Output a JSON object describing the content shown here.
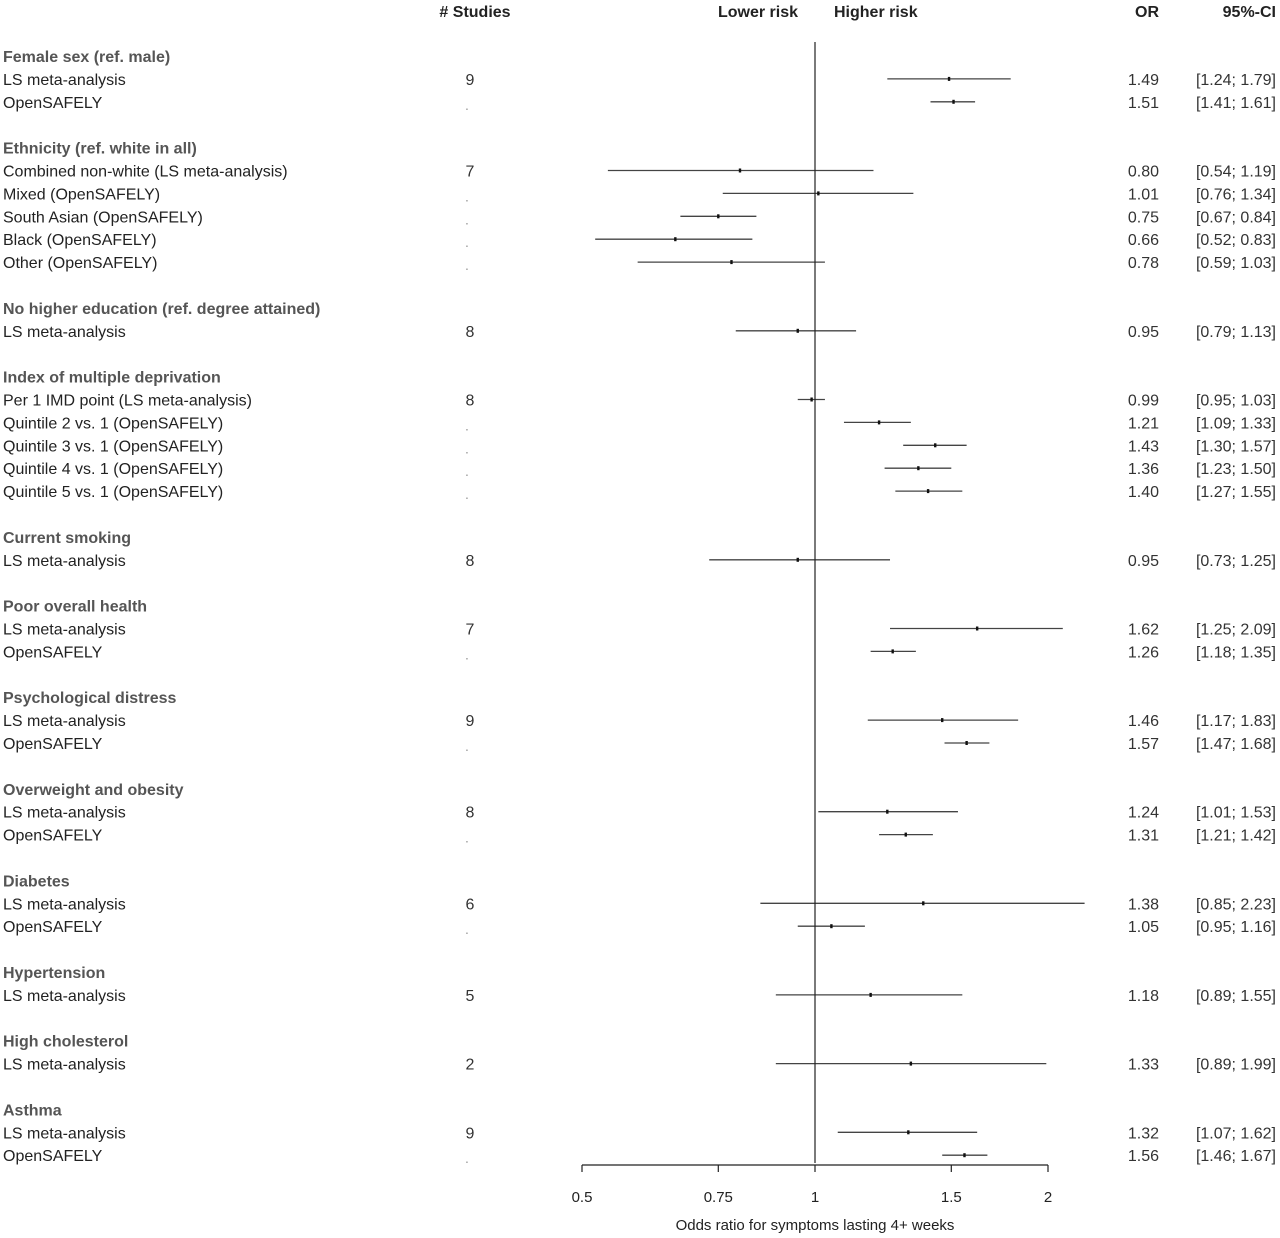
{
  "chart_data": {
    "type": "forest",
    "headers": {
      "studies": "# Studies",
      "lower": "Lower risk",
      "higher": "Higher risk",
      "or": "OR",
      "ci": "95%-CI"
    },
    "xlabel": "Odds ratio for symptoms lasting 4+ weeks",
    "x_scale": "log",
    "xlim": [
      0.5,
      2
    ],
    "ticks": [
      "0.5",
      "0.75",
      "1",
      "1.5",
      "2"
    ],
    "reference_line": 1,
    "rows": [
      {
        "type": "group",
        "label": "Female sex (ref. male)"
      },
      {
        "type": "item",
        "label": "LS meta-analysis",
        "studies": "9",
        "or": 1.49,
        "lo": 1.24,
        "hi": 1.79,
        "or_text": "1.49",
        "ci_text": "[1.24; 1.79]"
      },
      {
        "type": "item",
        "label": "OpenSAFELY",
        "studies": ".",
        "or": 1.51,
        "lo": 1.41,
        "hi": 1.61,
        "or_text": "1.51",
        "ci_text": "[1.41; 1.61]"
      },
      {
        "type": "gap"
      },
      {
        "type": "group",
        "label": "Ethnicity (ref. white in all)"
      },
      {
        "type": "item",
        "label": "Combined non-white (LS meta-analysis)",
        "studies": "7",
        "or": 0.8,
        "lo": 0.54,
        "hi": 1.19,
        "or_text": "0.80",
        "ci_text": "[0.54; 1.19]"
      },
      {
        "type": "item",
        "label": "Mixed (OpenSAFELY)",
        "studies": ".",
        "or": 1.01,
        "lo": 0.76,
        "hi": 1.34,
        "or_text": "1.01",
        "ci_text": "[0.76; 1.34]"
      },
      {
        "type": "item",
        "label": "South Asian (OpenSAFELY)",
        "studies": ".",
        "or": 0.75,
        "lo": 0.67,
        "hi": 0.84,
        "or_text": "0.75",
        "ci_text": "[0.67; 0.84]"
      },
      {
        "type": "item",
        "label": "Black (OpenSAFELY)",
        "studies": ".",
        "or": 0.66,
        "lo": 0.52,
        "hi": 0.83,
        "or_text": "0.66",
        "ci_text": "[0.52; 0.83]"
      },
      {
        "type": "item",
        "label": "Other (OpenSAFELY)",
        "studies": ".",
        "or": 0.78,
        "lo": 0.59,
        "hi": 1.03,
        "or_text": "0.78",
        "ci_text": "[0.59; 1.03]"
      },
      {
        "type": "gap"
      },
      {
        "type": "group",
        "label": "No higher education (ref. degree attained)"
      },
      {
        "type": "item",
        "label": "LS meta-analysis",
        "studies": "8",
        "or": 0.95,
        "lo": 0.79,
        "hi": 1.13,
        "or_text": "0.95",
        "ci_text": "[0.79; 1.13]"
      },
      {
        "type": "gap"
      },
      {
        "type": "group",
        "label": "Index of multiple deprivation"
      },
      {
        "type": "item",
        "label": "Per 1 IMD point (LS meta-analysis)",
        "studies": "8",
        "or": 0.99,
        "lo": 0.95,
        "hi": 1.03,
        "or_text": "0.99",
        "ci_text": "[0.95; 1.03]"
      },
      {
        "type": "item",
        "label": "Quintile 2 vs. 1 (OpenSAFELY)",
        "studies": ".",
        "or": 1.21,
        "lo": 1.09,
        "hi": 1.33,
        "or_text": "1.21",
        "ci_text": "[1.09; 1.33]"
      },
      {
        "type": "item",
        "label": "Quintile 3 vs. 1 (OpenSAFELY)",
        "studies": ".",
        "or": 1.43,
        "lo": 1.3,
        "hi": 1.57,
        "or_text": "1.43",
        "ci_text": "[1.30; 1.57]"
      },
      {
        "type": "item",
        "label": "Quintile 4 vs. 1 (OpenSAFELY)",
        "studies": ".",
        "or": 1.36,
        "lo": 1.23,
        "hi": 1.5,
        "or_text": "1.36",
        "ci_text": "[1.23; 1.50]"
      },
      {
        "type": "item",
        "label": "Quintile 5 vs. 1 (OpenSAFELY)",
        "studies": ".",
        "or": 1.4,
        "lo": 1.27,
        "hi": 1.55,
        "or_text": "1.40",
        "ci_text": "[1.27; 1.55]"
      },
      {
        "type": "gap"
      },
      {
        "type": "group",
        "label": "Current smoking"
      },
      {
        "type": "item",
        "label": "LS meta-analysis",
        "studies": "8",
        "or": 0.95,
        "lo": 0.73,
        "hi": 1.25,
        "or_text": "0.95",
        "ci_text": "[0.73; 1.25]"
      },
      {
        "type": "gap"
      },
      {
        "type": "group",
        "label": "Poor overall health"
      },
      {
        "type": "item",
        "label": "LS meta-analysis",
        "studies": "7",
        "or": 1.62,
        "lo": 1.25,
        "hi": 2.09,
        "or_text": "1.62",
        "ci_text": "[1.25; 2.09]"
      },
      {
        "type": "item",
        "label": "OpenSAFELY",
        "studies": ".",
        "or": 1.26,
        "lo": 1.18,
        "hi": 1.35,
        "or_text": "1.26",
        "ci_text": "[1.18; 1.35]"
      },
      {
        "type": "gap"
      },
      {
        "type": "group",
        "label": "Psychological distress"
      },
      {
        "type": "item",
        "label": "LS meta-analysis",
        "studies": "9",
        "or": 1.46,
        "lo": 1.17,
        "hi": 1.83,
        "or_text": "1.46",
        "ci_text": "[1.17; 1.83]"
      },
      {
        "type": "item",
        "label": "OpenSAFELY",
        "studies": ".",
        "or": 1.57,
        "lo": 1.47,
        "hi": 1.68,
        "or_text": "1.57",
        "ci_text": "[1.47; 1.68]"
      },
      {
        "type": "gap"
      },
      {
        "type": "group",
        "label": "Overweight and obesity"
      },
      {
        "type": "item",
        "label": "LS meta-analysis",
        "studies": "8",
        "or": 1.24,
        "lo": 1.01,
        "hi": 1.53,
        "or_text": "1.24",
        "ci_text": "[1.01; 1.53]"
      },
      {
        "type": "item",
        "label": "OpenSAFELY",
        "studies": ".",
        "or": 1.31,
        "lo": 1.21,
        "hi": 1.42,
        "or_text": "1.31",
        "ci_text": "[1.21; 1.42]"
      },
      {
        "type": "gap"
      },
      {
        "type": "group",
        "label": "Diabetes"
      },
      {
        "type": "item",
        "label": "LS meta-analysis",
        "studies": "6",
        "or": 1.38,
        "lo": 0.85,
        "hi": 2.23,
        "or_text": "1.38",
        "ci_text": "[0.85; 2.23]"
      },
      {
        "type": "item",
        "label": "OpenSAFELY",
        "studies": ".",
        "or": 1.05,
        "lo": 0.95,
        "hi": 1.16,
        "or_text": "1.05",
        "ci_text": "[0.95; 1.16]"
      },
      {
        "type": "gap"
      },
      {
        "type": "group",
        "label": "Hypertension"
      },
      {
        "type": "item",
        "label": "LS meta-analysis",
        "studies": "5",
        "or": 1.18,
        "lo": 0.89,
        "hi": 1.55,
        "or_text": "1.18",
        "ci_text": "[0.89; 1.55]"
      },
      {
        "type": "gap"
      },
      {
        "type": "group",
        "label": "High cholesterol"
      },
      {
        "type": "item",
        "label": "LS meta-analysis",
        "studies": "2",
        "or": 1.33,
        "lo": 0.89,
        "hi": 1.99,
        "or_text": "1.33",
        "ci_text": "[0.89; 1.99]"
      },
      {
        "type": "gap"
      },
      {
        "type": "group",
        "label": "Asthma"
      },
      {
        "type": "item",
        "label": "LS meta-analysis",
        "studies": "9",
        "or": 1.32,
        "lo": 1.07,
        "hi": 1.62,
        "or_text": "1.32",
        "ci_text": "[1.07; 1.62]"
      },
      {
        "type": "item",
        "label": "OpenSAFELY",
        "studies": ".",
        "or": 1.56,
        "lo": 1.46,
        "hi": 1.67,
        "or_text": "1.56",
        "ci_text": "[1.46; 1.67]"
      }
    ]
  }
}
